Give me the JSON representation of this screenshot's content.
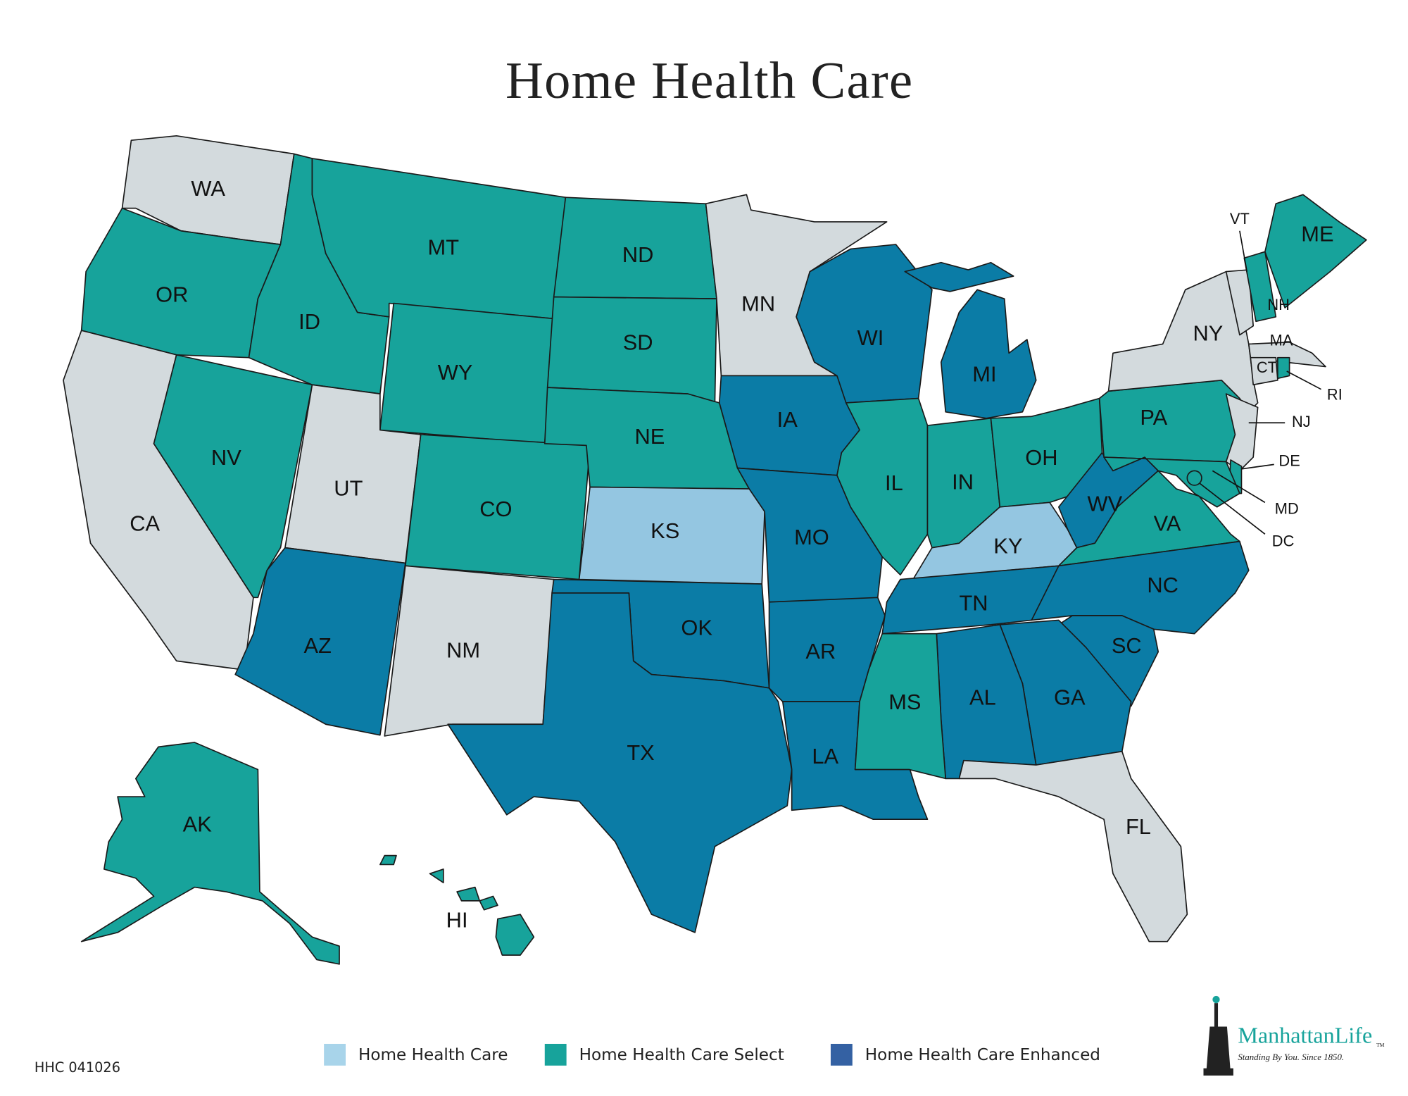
{
  "title": "Home Health Care",
  "states": [
    {
      "label": "WA",
      "color": "#d3dadd"
    },
    {
      "label": "OR",
      "color": "#17a39b"
    },
    {
      "label": "CA",
      "color": "#d3dadd"
    },
    {
      "label": "NV",
      "color": "#17a39b"
    },
    {
      "label": "ID",
      "color": "#17a39b"
    },
    {
      "label": "MT",
      "color": "#17a39b"
    },
    {
      "label": "WY",
      "color": "#17a39b"
    },
    {
      "label": "UT",
      "color": "#d3dadd"
    },
    {
      "label": "AZ",
      "color": "#0b7ca6"
    },
    {
      "label": "CO",
      "color": "#17a39b"
    },
    {
      "label": "NM",
      "color": "#d3dadd"
    },
    {
      "label": "ND",
      "color": "#17a39b"
    },
    {
      "label": "SD",
      "color": "#17a39b"
    },
    {
      "label": "NE",
      "color": "#17a39b"
    },
    {
      "label": "KS",
      "color": "#94c6e1"
    },
    {
      "label": "OK",
      "color": "#0b7ca6"
    },
    {
      "label": "TX",
      "color": "#0b7ca6"
    },
    {
      "label": "MN",
      "color": "#d3dadd"
    },
    {
      "label": "IA",
      "color": "#0b7ca6"
    },
    {
      "label": "MO",
      "color": "#0b7ca6"
    },
    {
      "label": "AR",
      "color": "#0b7ca6"
    },
    {
      "label": "LA",
      "color": "#0b7ca6"
    },
    {
      "label": "WI",
      "color": "#0b7ca6"
    },
    {
      "label": "IL",
      "color": "#17a39b"
    },
    {
      "label": "MI",
      "color": "#0b7ca6"
    },
    {
      "label": "IN",
      "color": "#17a39b"
    },
    {
      "label": "OH",
      "color": "#17a39b"
    },
    {
      "label": "KY",
      "color": "#94c6e1"
    },
    {
      "label": "TN",
      "color": "#0b7ca6"
    },
    {
      "label": "WV",
      "color": "#0b7ca6"
    },
    {
      "label": "VA",
      "color": "#17a39b"
    },
    {
      "label": "NC",
      "color": "#0b7ca6"
    },
    {
      "label": "SC",
      "color": "#0b7ca6"
    },
    {
      "label": "GA",
      "color": "#0b7ca6"
    },
    {
      "label": "AL",
      "color": "#0b7ca6"
    },
    {
      "label": "MS",
      "color": "#17a39b"
    },
    {
      "label": "FL",
      "color": "#d3dadd"
    },
    {
      "label": "PA",
      "color": "#17a39b"
    },
    {
      "label": "NY",
      "color": "#d3dadd"
    },
    {
      "label": "NJ",
      "color": "#d3dadd"
    },
    {
      "label": "DE",
      "color": "#17a39b"
    },
    {
      "label": "MD",
      "color": "#17a39b"
    },
    {
      "label": "DC",
      "color": "#17a39b"
    },
    {
      "label": "VT",
      "color": "#d3dadd"
    },
    {
      "label": "NH",
      "color": "#17a39b"
    },
    {
      "label": "ME",
      "color": "#17a39b"
    },
    {
      "label": "MA",
      "color": "#d3dadd"
    },
    {
      "label": "CT",
      "color": "#d3dadd"
    },
    {
      "label": "RI",
      "color": "#17a39b"
    },
    {
      "label": "AK",
      "color": "#17a39b"
    },
    {
      "label": "HI",
      "color": "#17a39b"
    }
  ],
  "legend": [
    {
      "label": "Home Health Care",
      "color": "#a8d4ea"
    },
    {
      "label": "Home Health Care Select",
      "color": "#17a39b"
    },
    {
      "label": "Home Health Care Enhanced",
      "color": "#3461a3"
    }
  ],
  "code": "HHC 041026",
  "logo": {
    "name": "ManhattanLife",
    "mark": "TM",
    "tagline": "Standing By You. Since 1850."
  }
}
